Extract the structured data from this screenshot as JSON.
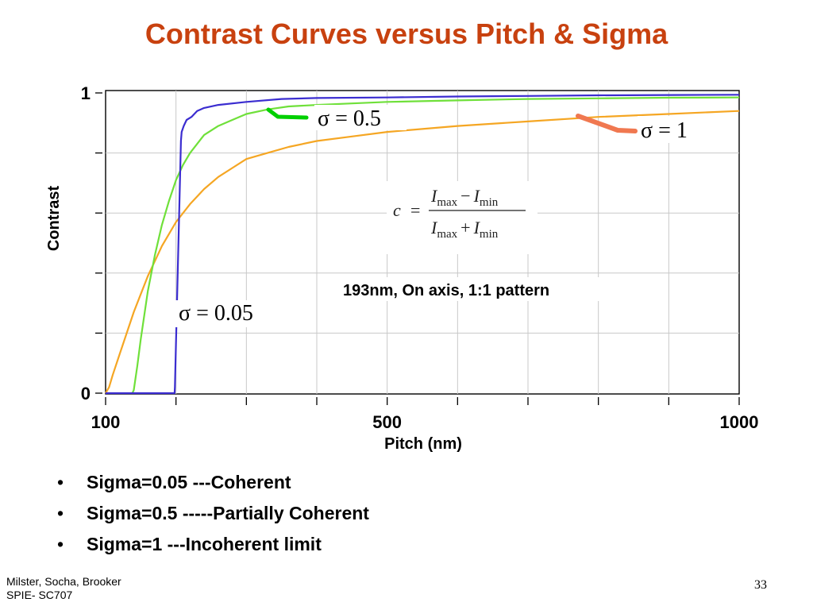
{
  "slide": {
    "title": "Contrast Curves versus Pitch & Sigma",
    "title_color": "#C8410F",
    "bullets": [
      {
        "text": "Sigma=0.05 ---Coherent"
      },
      {
        "text": "Sigma=0.5 -----Partially Coherent"
      },
      {
        "text": "Sigma=1 ---Incoherent limit"
      }
    ],
    "footer": {
      "line1": "Milster, Socha, Brooker",
      "line2": "SPIE- SC707"
    },
    "page_number": "33"
  },
  "chart_data": {
    "type": "line",
    "title": "",
    "xlabel": "Pitch (nm)",
    "ylabel": "Contrast",
    "xlim": [
      100,
      1000
    ],
    "ylim": [
      0,
      1
    ],
    "x_ticks": [
      {
        "value": 100,
        "label": "100"
      },
      {
        "value": 200,
        "label": ""
      },
      {
        "value": 300,
        "label": ""
      },
      {
        "value": 400,
        "label": ""
      },
      {
        "value": 500,
        "label": "500"
      },
      {
        "value": 600,
        "label": ""
      },
      {
        "value": 700,
        "label": ""
      },
      {
        "value": 800,
        "label": ""
      },
      {
        "value": 900,
        "label": ""
      },
      {
        "value": 1000,
        "label": "1000"
      }
    ],
    "y_ticks": [
      {
        "value": 0,
        "label": "0"
      },
      {
        "value": 0.2,
        "label": ""
      },
      {
        "value": 0.4,
        "label": ""
      },
      {
        "value": 0.6,
        "label": ""
      },
      {
        "value": 0.8,
        "label": ""
      },
      {
        "value": 1,
        "label": "1"
      }
    ],
    "grid": true,
    "series": [
      {
        "name": "σ = 0.05",
        "color": "#3B2DD0",
        "x": [
          100,
          198,
          198.5,
          207,
          208,
          211,
          215,
          222,
          230,
          240,
          260,
          300,
          350,
          400,
          500,
          600,
          700,
          800,
          900,
          1000
        ],
        "y": [
          0,
          0,
          0.02,
          0.84,
          0.87,
          0.89,
          0.91,
          0.92,
          0.94,
          0.95,
          0.96,
          0.97,
          0.98,
          0.983,
          0.985,
          0.988,
          0.99,
          0.992,
          0.993,
          0.994
        ]
      },
      {
        "name": "σ = 0.5",
        "color": "#6FE03A",
        "x": [
          138,
          140,
          145,
          150,
          160,
          170,
          180,
          190,
          200,
          210,
          220,
          240,
          260,
          280,
          300,
          330,
          360,
          400,
          450,
          500,
          600,
          700,
          800,
          900,
          1000
        ],
        "y": [
          0,
          0.01,
          0.09,
          0.18,
          0.34,
          0.46,
          0.56,
          0.64,
          0.71,
          0.76,
          0.8,
          0.86,
          0.89,
          0.91,
          0.93,
          0.945,
          0.955,
          0.96,
          0.965,
          0.97,
          0.975,
          0.98,
          0.982,
          0.984,
          0.985
        ]
      },
      {
        "name": "σ = 1",
        "color": "#F5A623",
        "x": [
          100,
          105,
          110,
          120,
          130,
          140,
          150,
          160,
          170,
          180,
          190,
          200,
          220,
          240,
          260,
          280,
          300,
          330,
          360,
          400,
          450,
          500,
          600,
          700,
          800,
          900,
          1000
        ],
        "y": [
          0,
          0.02,
          0.06,
          0.13,
          0.2,
          0.27,
          0.33,
          0.39,
          0.44,
          0.49,
          0.53,
          0.57,
          0.63,
          0.68,
          0.72,
          0.75,
          0.78,
          0.8,
          0.82,
          0.84,
          0.855,
          0.87,
          0.89,
          0.905,
          0.92,
          0.93,
          0.94
        ]
      }
    ],
    "annotations": [
      {
        "text": "σ = 0.5",
        "color": "#00D000"
      },
      {
        "text": "σ = 1",
        "color": "#F07850"
      },
      {
        "text": "σ = 0.05"
      },
      {
        "text": "193nm, On axis, 1:1 pattern"
      }
    ],
    "formula": {
      "lhs": "c",
      "eq": "=",
      "numerator": "I_max − I_min",
      "denominator": "I_max + I_min",
      "var": "I",
      "max": "max",
      "min": "min",
      "minus": "−",
      "plus": "+"
    }
  }
}
